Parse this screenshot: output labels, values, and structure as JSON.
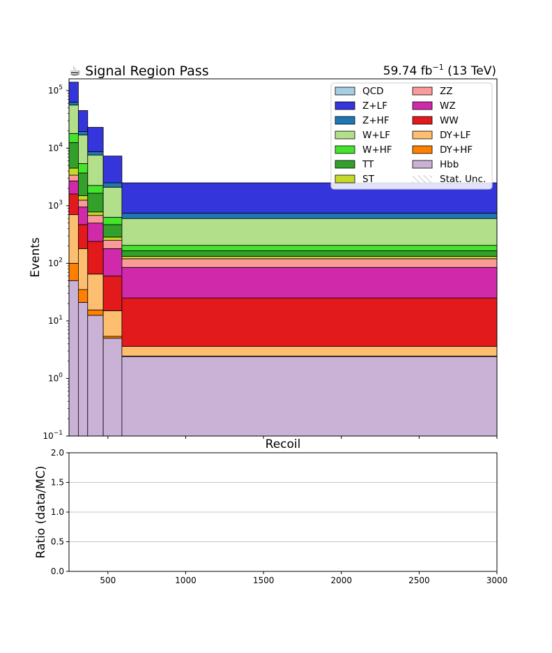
{
  "top_panel": {
    "title_left": "☕ Signal Region Pass",
    "title_right_main": "59.74 fb",
    "title_right_sup": "−1",
    "title_right_tail": " (13 TeV)",
    "ylabel": "Events",
    "xlabel": "Recoil"
  },
  "ratio_panel": {
    "ylabel": "Ratio (data/MC)",
    "yticks": [
      "0.0",
      "0.5",
      "1.0",
      "1.5",
      "2.0"
    ]
  },
  "chart_data": [
    {
      "type": "area",
      "subtype": "stacked-histogram",
      "yscale": "log",
      "xlim": [
        250,
        3000
      ],
      "ylim": [
        0.1,
        160000
      ],
      "yticks": [
        {
          "value": 0.1,
          "base": "10",
          "exp": "−1"
        },
        {
          "value": 1,
          "base": "10",
          "exp": "0"
        },
        {
          "value": 10,
          "base": "10",
          "exp": "1"
        },
        {
          "value": 100,
          "base": "10",
          "exp": "2"
        },
        {
          "value": 1000,
          "base": "10",
          "exp": "3"
        },
        {
          "value": 10000,
          "base": "10",
          "exp": "4"
        },
        {
          "value": 100000,
          "base": "10",
          "exp": "5"
        }
      ],
      "bin_edges": [
        250,
        310,
        370,
        470,
        590,
        3000
      ],
      "stack_order": [
        "Hbb",
        "DY+HF",
        "DY+LF",
        "WW",
        "WZ",
        "ZZ",
        "ST",
        "TT",
        "W+HF",
        "W+LF",
        "Z+HF",
        "Z+LF",
        "QCD"
      ],
      "cumulative_top": {
        "Hbb": [
          50,
          21,
          12.5,
          5,
          2.4
        ],
        "DY+HF": [
          100,
          35,
          15.5,
          5.4,
          2.45
        ],
        "DY+LF": [
          700,
          180,
          65,
          15,
          3.6
        ],
        "WW": [
          1600,
          470,
          240,
          60,
          25
        ],
        "WZ": [
          2700,
          950,
          500,
          180,
          85
        ],
        "ZZ": [
          3400,
          1250,
          680,
          250,
          120
        ],
        "ST": [
          4500,
          1500,
          780,
          285,
          132
        ],
        "TT": [
          12500,
          3700,
          1650,
          470,
          165
        ],
        "W+HF": [
          18000,
          5400,
          2250,
          630,
          205
        ],
        "W+LF": [
          56000,
          17000,
          7600,
          2100,
          600
        ],
        "Z+HF": [
          63000,
          19500,
          8700,
          2500,
          740
        ],
        "Z+LF": [
          140000,
          45000,
          23000,
          7300,
          2500
        ],
        "QCD": [
          140000,
          45000,
          23000,
          7300,
          2500
        ]
      },
      "legend": {
        "placement": "top-right",
        "columns": [
          [
            {
              "label": "QCD",
              "color": "#a6cee3"
            },
            {
              "label": "Z+LF",
              "color": "#3535dc"
            },
            {
              "label": "Z+HF",
              "color": "#1f78b4"
            },
            {
              "label": "W+LF",
              "color": "#b2df8a"
            },
            {
              "label": "W+HF",
              "color": "#44e32c"
            },
            {
              "label": "TT",
              "color": "#33a02c"
            },
            {
              "label": "ST",
              "color": "#c6d929"
            }
          ],
          [
            {
              "label": "ZZ",
              "color": "#fb9a99"
            },
            {
              "label": "WZ",
              "color": "#d02aaa"
            },
            {
              "label": "WW",
              "color": "#e31a1c"
            },
            {
              "label": "DY+LF",
              "color": "#fdbf6f"
            },
            {
              "label": "DY+HF",
              "color": "#ff7f00"
            },
            {
              "label": "Hbb",
              "color": "#cab2d6"
            },
            {
              "label": "Stat. Unc.",
              "color": "hatch"
            }
          ]
        ]
      }
    },
    {
      "type": "line",
      "subtype": "ratio",
      "xlim": [
        250,
        3000
      ],
      "ylim": [
        0,
        2
      ],
      "grid": "horizontal",
      "xticks": [
        500,
        1000,
        1500,
        2000,
        2500,
        3000
      ],
      "series": []
    }
  ]
}
